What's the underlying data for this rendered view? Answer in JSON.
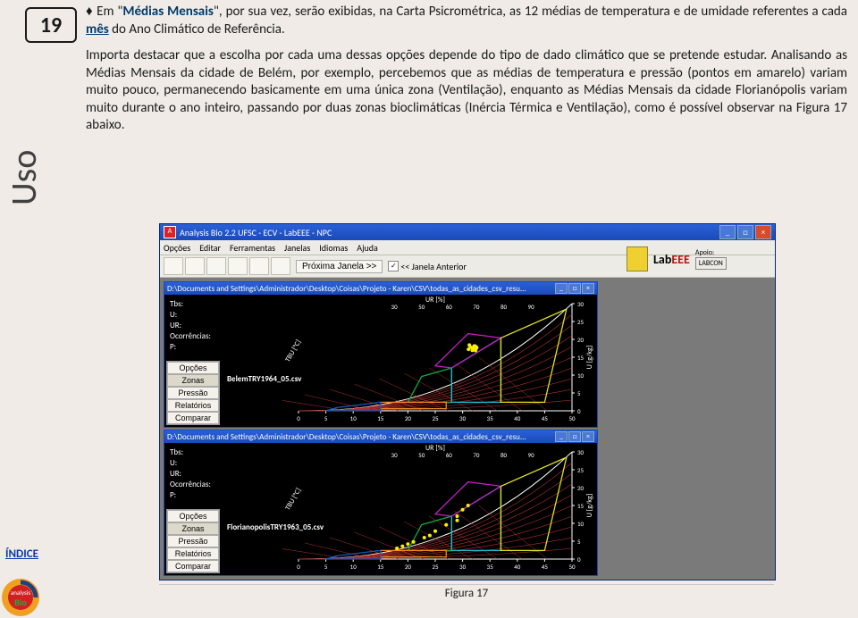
{
  "page_number": "19",
  "side_label": "Uso",
  "paragraphs": {
    "p1a": "♦ Em \"",
    "p1b": "Médias Mensais",
    "p1c": "\", por sua vez, serão exibidas, na Carta Psicrométrica, as 12 médias de temperatura e de umidade referentes a cada ",
    "p1d": "mês",
    "p1e": " do Ano Climático de Referência.",
    "p2": "Importa destacar que a escolha por cada uma dessas opções depende do tipo de dado climático que se pretende estudar. Analisando as Médias Mensais da cidade de Belém, por exemplo, percebemos que as médias de temperatura e pressão (pontos em amarelo) variam muito pouco, permanecendo basicamente em uma única zona (Ventilação), enquanto as Médias Mensais da cidade Florianópolis variam muito durante o ano inteiro, passando por duas zonas bioclimáticas (Inércia Térmica e Ventilação), como é possível observar na Figura 17 abaixo."
  },
  "app": {
    "title": "Analysis Bio 2.2    UFSC - ECV - LabEEE - NPC",
    "menu": [
      "Opções",
      "Editar",
      "Ferramentas",
      "Janelas",
      "Idiomas",
      "Ajuda"
    ],
    "nav_next": "Próxima Janela >>",
    "nav_prev": "<< Janela Anterior",
    "brand_lab": "Lab",
    "brand_eee": "EEE",
    "brand_apoio": "Apoio:",
    "brand_labcon": "LABCON"
  },
  "chart_windows": {
    "path": "D:\\Documents and Settings\\Administrador\\Desktop\\Coisas\\Projeto - Karen\\CSV\\todas_as_cidades_csv_resu...",
    "info_labels": [
      "Tbs:",
      "U:",
      "UR:",
      "Ocorrências:",
      "P:"
    ],
    "csv1": "BelemTRY1964_05.csv",
    "csv2": "FlorianopolisTRY1963_05.csv",
    "side_buttons": [
      "Opções",
      "Zonas",
      "Pressão",
      "Relatórios",
      "Comparar"
    ],
    "ur_label": "UR [%]",
    "x_ticks": [
      "0",
      "5",
      "10",
      "15",
      "20",
      "25",
      "30",
      "35",
      "40",
      "45",
      "50"
    ],
    "y_ticks_right": [
      "0",
      "5",
      "10",
      "15",
      "20",
      "25",
      "30"
    ],
    "y_label_right": "U [g/kg]",
    "x_label": "TBU [°C]",
    "ur_top_ticks": [
      "30",
      "50",
      "60",
      "70",
      "80",
      "90"
    ]
  },
  "chart_style": {
    "bg": "#000000",
    "grid_color": "#b03030",
    "zone_colors": [
      "#10a840",
      "#f08820",
      "#e0e020",
      "#1058c0",
      "#18c0d0",
      "#c020c0"
    ],
    "axis_color": "#ffffff",
    "point_color": "#f8f000"
  },
  "figure_caption": "Figura 17",
  "indice": "ÍNDICE"
}
